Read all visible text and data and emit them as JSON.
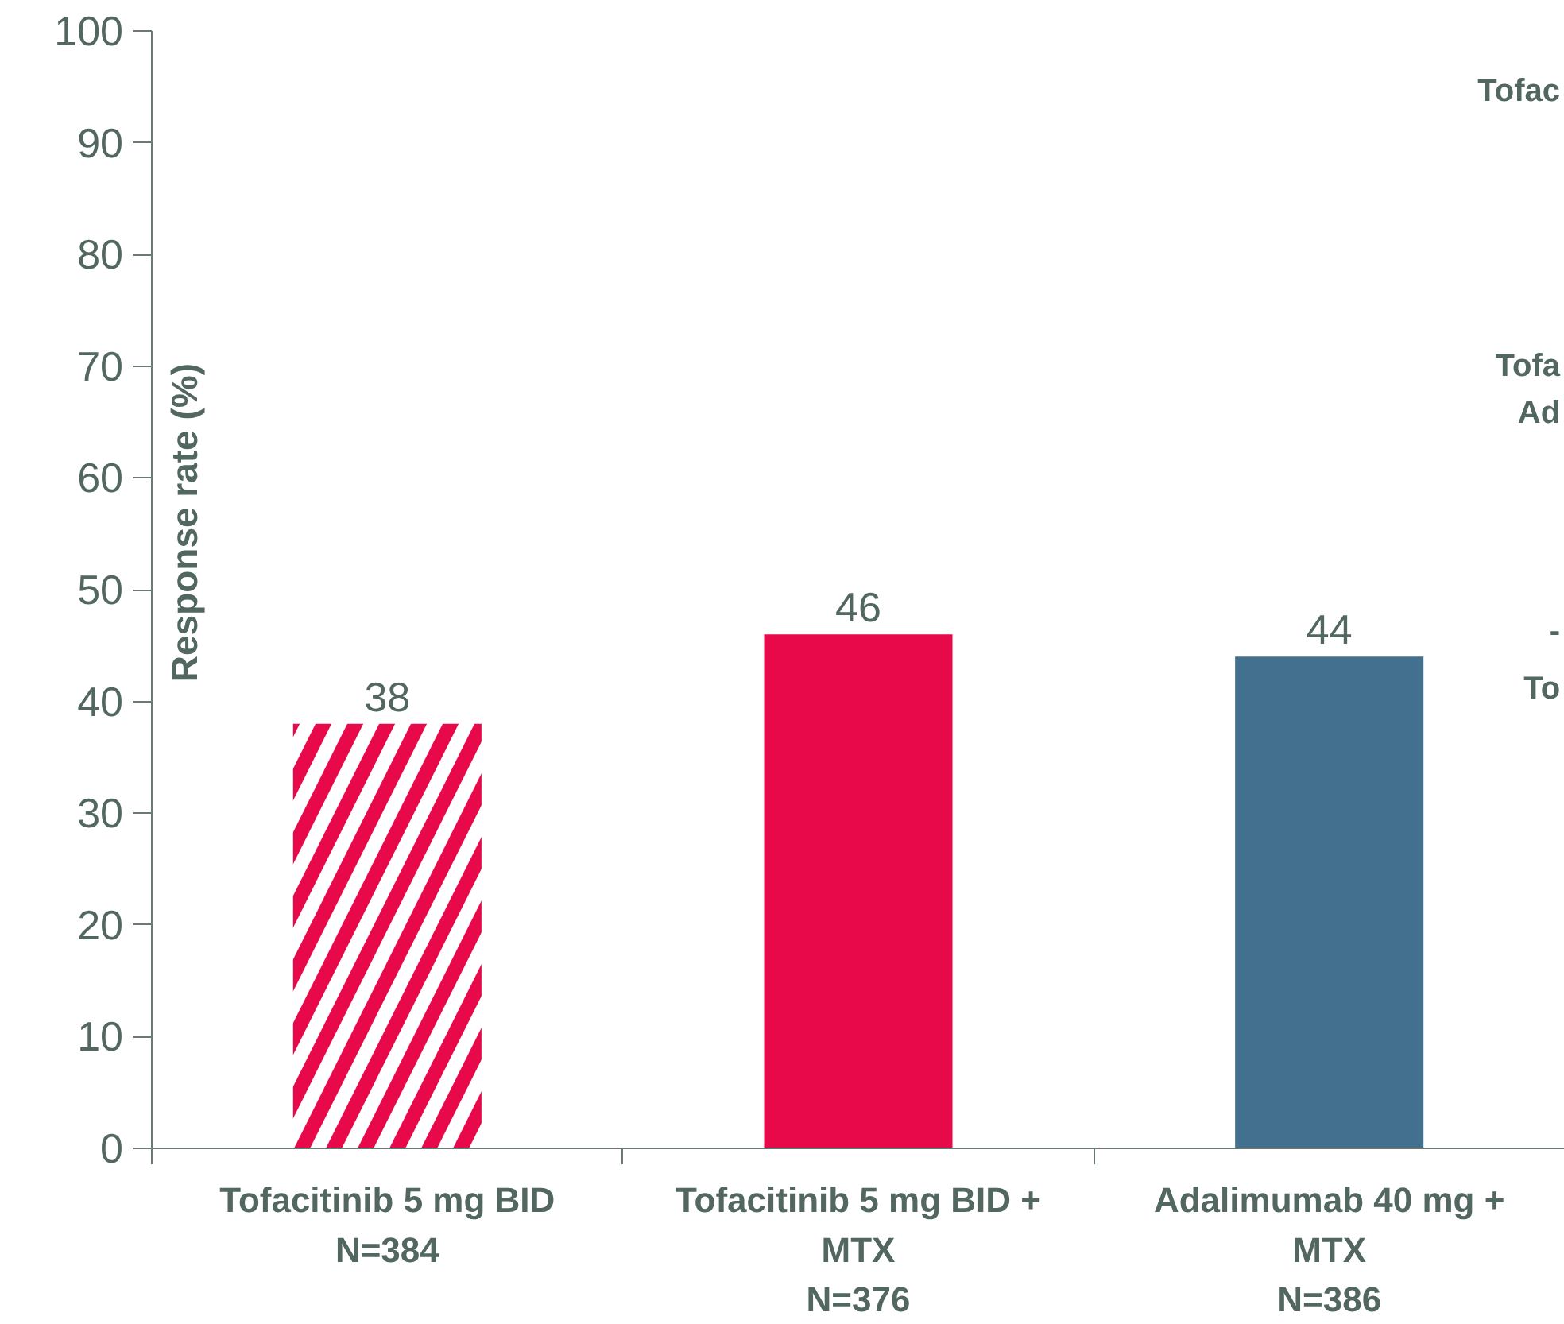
{
  "chart_data": {
    "type": "bar",
    "ylabel": "Response rate (%)",
    "categories": [
      "Tofacitinib 5 mg BID\nN=384",
      "Tofacitinib 5 mg BID +\nMTX\nN=376",
      "Adalimumab 40 mg +\nMTX\nN=386"
    ],
    "values": [
      38,
      46,
      44
    ],
    "colors": [
      "#e8094a",
      "#e8094a",
      "#44708f"
    ],
    "ylim": [
      0,
      100
    ],
    "yticks": [
      0,
      10,
      20,
      30,
      40,
      50,
      60,
      70,
      80,
      90,
      100
    ],
    "data_labels": true,
    "grid": false,
    "annotations": [
      "Tofac",
      "Tofa",
      "Ad",
      "-",
      "To"
    ]
  }
}
